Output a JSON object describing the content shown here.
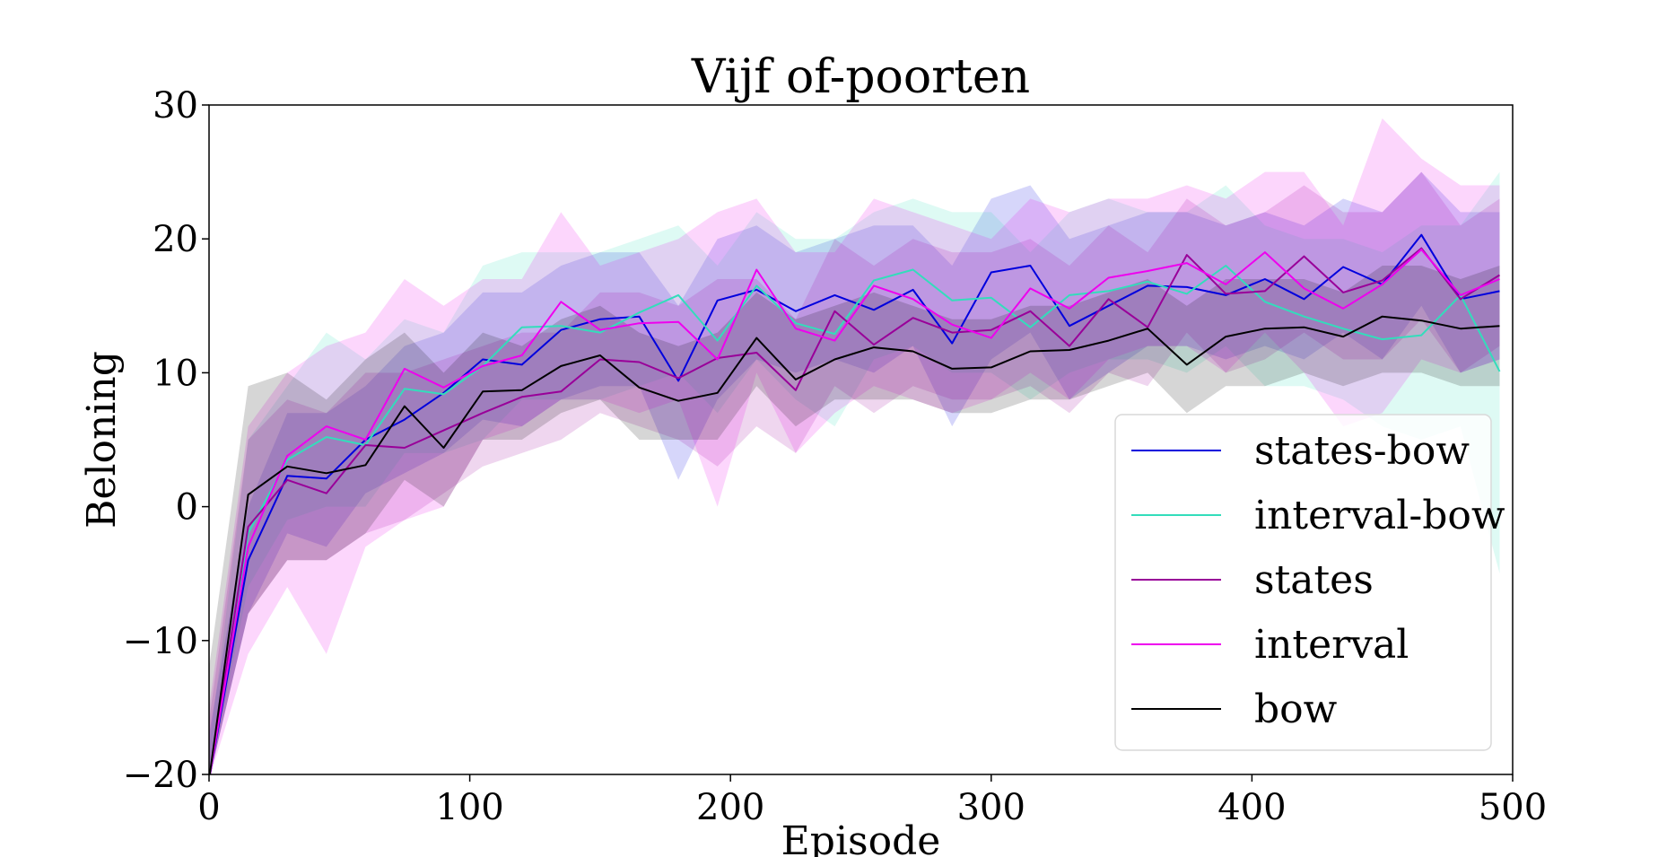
{
  "chart_data": {
    "type": "line",
    "title": "Vijf of-poorten",
    "xlabel": "Episode",
    "ylabel": "Beloning",
    "xlim": [
      0,
      500
    ],
    "ylim": [
      -20,
      30
    ],
    "xticks": [
      0,
      100,
      200,
      300,
      400,
      500
    ],
    "yticks": [
      -20,
      -10,
      0,
      10,
      20,
      30
    ],
    "ytick_labels": [
      "−20",
      "−10",
      "0",
      "10",
      "20",
      "30"
    ],
    "grid": false,
    "legend_position": "lower-right",
    "x": [
      0,
      15,
      30,
      45,
      60,
      75,
      90,
      105,
      120,
      135,
      150,
      165,
      180,
      195,
      210,
      225,
      240,
      255,
      270,
      285,
      300,
      315,
      330,
      345,
      360,
      375,
      390,
      405,
      420,
      435,
      450,
      465,
      480,
      495
    ],
    "series": [
      {
        "name": "states-bow",
        "color": "#0000dd",
        "values": [
          -21,
          -4,
          2.3,
          2.1,
          5,
          6.5,
          8.5,
          11,
          10.6,
          13.2,
          14,
          14.2,
          9.4,
          15.4,
          16.2,
          14.6,
          15.8,
          14.7,
          16.2,
          12.2,
          17.5,
          18,
          13.5,
          15,
          16.5,
          16.4,
          15.8,
          17,
          15.5,
          17.9,
          16.6,
          20.3,
          15.5,
          16.1
        ],
        "lower": [
          -22,
          -8,
          -2,
          -3,
          1,
          2.5,
          4,
          6.5,
          6,
          8,
          9,
          9,
          2,
          8,
          11,
          10,
          11,
          10,
          12,
          6,
          11,
          13,
          8,
          10,
          12,
          12,
          11,
          12,
          11,
          13,
          11,
          15,
          10,
          11
        ],
        "upper": [
          -17,
          0,
          7,
          7,
          9,
          12,
          13,
          16,
          16,
          18,
          19,
          19,
          15,
          20,
          21,
          19,
          20,
          21,
          21,
          18,
          23,
          24,
          20,
          21,
          22,
          22,
          21,
          22,
          21,
          23,
          22,
          25,
          22,
          22
        ]
      },
      {
        "name": "interval-bow",
        "color": "#33ddbb",
        "values": [
          -22,
          -2,
          3.5,
          5.2,
          4.6,
          8.8,
          8.4,
          10.5,
          13.4,
          13.5,
          13,
          14.5,
          15.8,
          12.4,
          16.5,
          13.7,
          12.9,
          16.9,
          17.7,
          15.4,
          15.6,
          13.4,
          15.8,
          16.1,
          16.8,
          15.9,
          18,
          15.3,
          14.2,
          13.3,
          12.5,
          12.8,
          15.8,
          10.1
        ],
        "lower": [
          -24,
          -6,
          -1,
          0,
          0,
          4,
          4,
          5,
          8,
          8,
          8,
          9,
          10,
          7,
          11,
          8,
          6,
          11,
          12,
          10,
          10,
          8,
          10,
          11,
          11,
          10,
          12,
          9,
          9,
          8,
          6,
          5,
          6,
          -5
        ],
        "upper": [
          -18,
          5,
          9,
          13,
          11,
          14,
          13,
          18,
          19,
          19,
          19,
          20,
          21,
          18,
          22,
          20,
          20,
          22,
          23,
          22,
          22,
          19,
          22,
          23,
          22,
          22,
          24,
          21,
          20,
          20,
          19,
          21,
          21,
          25
        ]
      },
      {
        "name": "states",
        "color": "#990099",
        "values": [
          -21,
          -1.5,
          2,
          1,
          4.6,
          4.4,
          5.7,
          7,
          8.2,
          8.6,
          11,
          10.8,
          9.6,
          11.1,
          11.5,
          8.7,
          14.6,
          12.1,
          14.1,
          13,
          13.2,
          14.6,
          12,
          15.5,
          13.4,
          18.8,
          15.9,
          16.1,
          18.7,
          16,
          16.9,
          19.3,
          15.5,
          17.3
        ],
        "lower": [
          -22,
          -8,
          -4,
          -4,
          -2,
          -1,
          1,
          3,
          4,
          5,
          7,
          6,
          5,
          3,
          6,
          4,
          9,
          7,
          9,
          8,
          8,
          9,
          7,
          10,
          9,
          13,
          10,
          11,
          13,
          11,
          11,
          14,
          10,
          12
        ],
        "upper": [
          -16,
          5,
          8,
          7,
          10,
          10,
          11,
          12,
          13,
          13,
          16,
          16,
          15,
          17,
          17,
          14,
          20,
          18,
          20,
          19,
          19,
          20,
          18,
          21,
          19,
          23,
          21,
          22,
          24,
          22,
          22,
          25,
          21,
          23
        ]
      },
      {
        "name": "interval",
        "color": "#ee00ee",
        "values": [
          -21,
          -3,
          3.8,
          6,
          5,
          10.3,
          8.9,
          10.5,
          11.3,
          15.3,
          13.2,
          13.7,
          13.8,
          11,
          17.7,
          13.3,
          12.4,
          16.5,
          15.5,
          13.6,
          12.6,
          16.3,
          14.8,
          17.1,
          17.6,
          18.2,
          16.6,
          19,
          16.3,
          14.8,
          16.6,
          19.2,
          15.8,
          17
        ],
        "lower": [
          -22,
          -11,
          -6,
          -11,
          -3,
          -1,
          0,
          5,
          6,
          8,
          8,
          7,
          8,
          0,
          10,
          4,
          7,
          9,
          8,
          7,
          8,
          10,
          8,
          11,
          12,
          12,
          10,
          13,
          10,
          6,
          7,
          11,
          10,
          11
        ],
        "upper": [
          -15,
          6,
          10,
          12,
          13,
          17,
          15,
          17,
          17,
          22,
          18,
          19,
          20,
          22,
          23,
          19,
          19,
          23,
          22,
          21,
          20,
          23,
          22,
          23,
          23,
          24,
          23,
          25,
          25,
          21,
          29,
          26,
          24,
          24
        ]
      },
      {
        "name": "bow",
        "color": "#000000",
        "values": [
          -21,
          0.9,
          3,
          2.5,
          3.1,
          7.5,
          4.4,
          8.6,
          8.7,
          10.5,
          11.3,
          8.9,
          7.9,
          8.5,
          12.6,
          9.5,
          11,
          11.9,
          11.6,
          10.3,
          10.4,
          11.6,
          11.7,
          12.4,
          13.3,
          10.6,
          12.7,
          13.3,
          13.4,
          12.7,
          14.2,
          13.9,
          13.3,
          13.5
        ],
        "lower": [
          -22,
          -8,
          -4,
          -4,
          -2,
          2,
          0,
          5,
          5,
          7,
          8,
          5,
          5,
          5,
          9,
          6,
          8,
          8,
          8,
          7,
          7,
          8,
          8,
          9,
          10,
          7,
          9,
          9,
          10,
          9,
          10,
          10,
          9,
          9
        ],
        "upper": [
          -12,
          9,
          10,
          8,
          11,
          13,
          10,
          13,
          12,
          14,
          15,
          13,
          12,
          13,
          16,
          14,
          15,
          16,
          15,
          14,
          14,
          15,
          15,
          16,
          17,
          15,
          17,
          17,
          17,
          16,
          18,
          18,
          17,
          18
        ]
      }
    ]
  }
}
